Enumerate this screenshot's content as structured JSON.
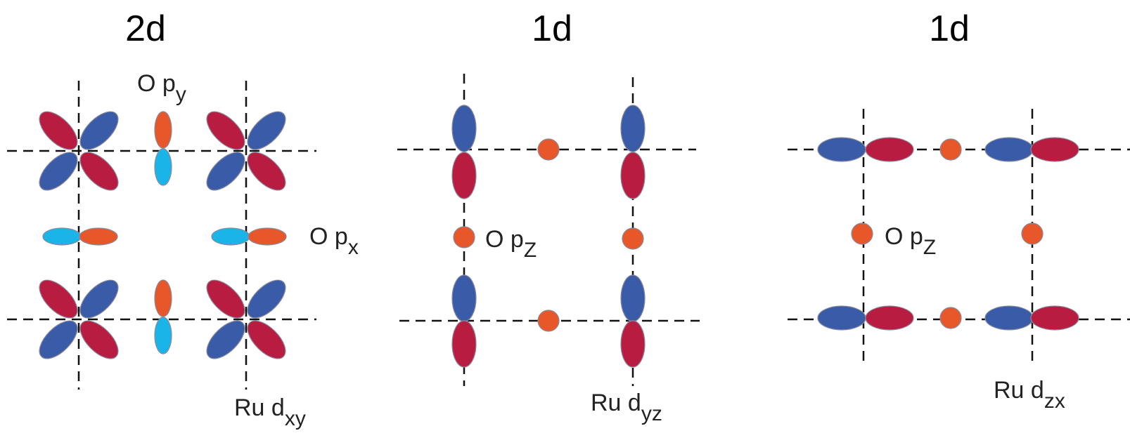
{
  "panels": [
    {
      "title": "2d",
      "labels": [
        {
          "main": "O p",
          "sub": "y"
        },
        {
          "main": "O p",
          "sub": "x"
        },
        {
          "main": "Ru d",
          "sub": "xy"
        }
      ]
    },
    {
      "title": "1d",
      "labels": [
        {
          "main": "O p",
          "sub": "Z"
        },
        {
          "main": "Ru d",
          "sub": "yz"
        }
      ]
    },
    {
      "title": "1d",
      "labels": [
        {
          "main": "O p",
          "sub": "Z"
        },
        {
          "main": "Ru d",
          "sub": "zx"
        }
      ]
    }
  ]
}
